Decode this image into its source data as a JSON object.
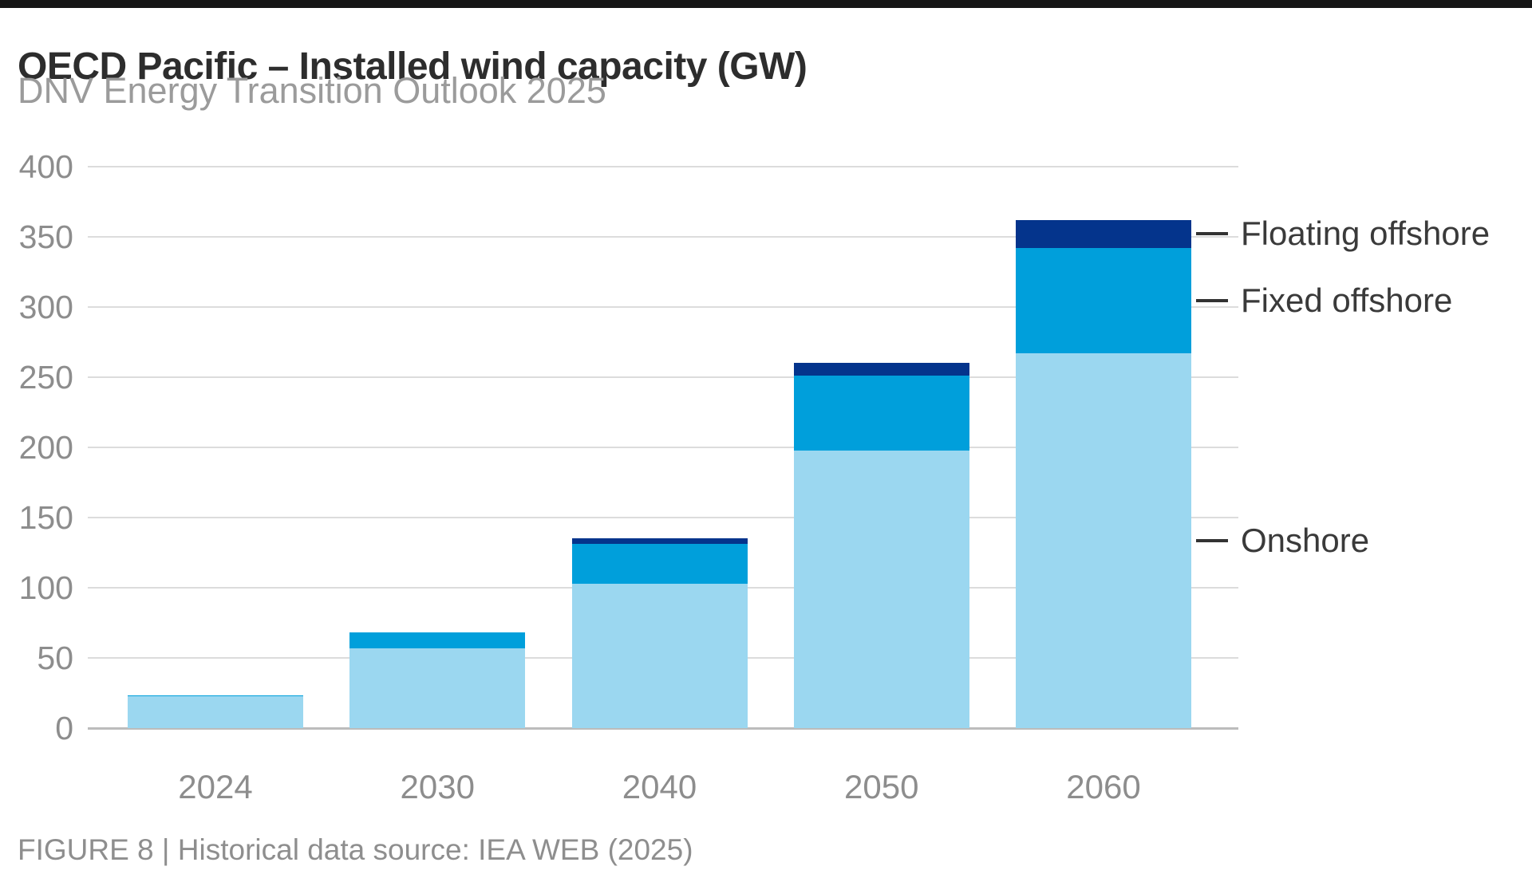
{
  "header": {
    "top_bar_color": "#161616"
  },
  "footer": {
    "caption": "FIGURE 8 | Historical data source: IEA WEB (2025)"
  },
  "chart_data": {
    "type": "bar",
    "stacked": true,
    "title": "OECD Pacific – Installed wind capacity (GW)",
    "subtitle": "DNV Energy Transition Outlook 2025",
    "categories": [
      "2024",
      "2030",
      "2040",
      "2050",
      "2060"
    ],
    "series": [
      {
        "name": "Onshore",
        "color": "#9bd7f0",
        "values": [
          22.5,
          57,
          103,
          198,
          267
        ]
      },
      {
        "name": "Fixed offshore",
        "color": "#009fdb",
        "values": [
          1,
          11,
          28,
          53,
          75
        ]
      },
      {
        "name": "Floating offshore",
        "color": "#04348c",
        "values": [
          0,
          0,
          4,
          9,
          20
        ]
      }
    ],
    "totals": [
      23.5,
      68,
      135,
      260,
      362
    ],
    "xlabel": "",
    "ylabel": "",
    "ylim": [
      0,
      400
    ],
    "ytick_step": 50,
    "yticks": [
      0,
      50,
      100,
      150,
      200,
      250,
      300,
      350,
      400
    ],
    "grid": true,
    "grid_color": "#dcdcdc",
    "axis_line_color": "#bcbcbc",
    "tick_label_color": "#8d8d8d",
    "legend_position": "right, aligned to segment centers of last bar",
    "legend_order_top_to_bottom": [
      "Floating offshore",
      "Fixed offshore",
      "Onshore"
    ]
  }
}
